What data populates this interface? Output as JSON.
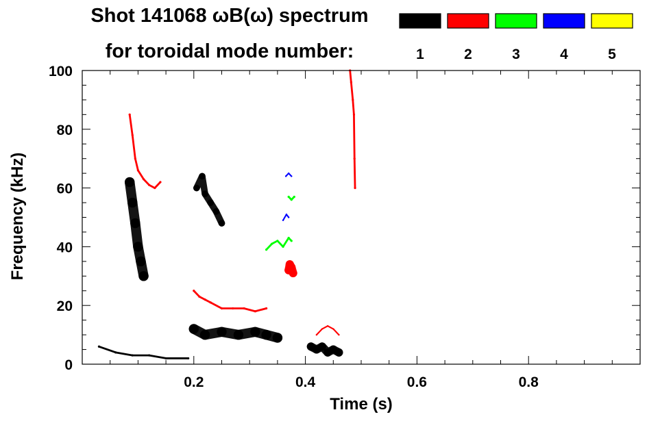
{
  "chart_data": {
    "type": "spectrogram",
    "title_line1": "Shot 141068 ωB(ω) spectrum",
    "title_line2": "for toroidal mode number:",
    "legend": [
      {
        "label": "1",
        "color": "#000000"
      },
      {
        "label": "2",
        "color": "#ff0000"
      },
      {
        "label": "3",
        "color": "#00ff00"
      },
      {
        "label": "4",
        "color": "#0000ff"
      },
      {
        "label": "5",
        "color": "#ffff00"
      }
    ],
    "xlabel": "Time (s)",
    "ylabel": "Frequency (kHz)",
    "xlim": [
      0.0,
      1.0
    ],
    "ylim": [
      0,
      100
    ],
    "x_ticks": [
      {
        "value": 0.2,
        "label": "0.2"
      },
      {
        "value": 0.4,
        "label": "0.4"
      },
      {
        "value": 0.6,
        "label": "0.6"
      },
      {
        "value": 0.8,
        "label": "0.8"
      }
    ],
    "y_ticks": [
      {
        "value": 0,
        "label": "0"
      },
      {
        "value": 20,
        "label": "20"
      },
      {
        "value": 40,
        "label": "40"
      },
      {
        "value": 60,
        "label": "60"
      },
      {
        "value": 80,
        "label": "80"
      },
      {
        "value": 100,
        "label": "100"
      }
    ],
    "x_minor_step": 0.05,
    "y_minor_step": 5,
    "mode_traces": [
      {
        "mode": "1",
        "color": "#000000",
        "kind": "blob",
        "name": "n1-early-broadband",
        "points": [
          [
            0.085,
            62
          ],
          [
            0.09,
            55
          ],
          [
            0.095,
            48
          ],
          [
            0.1,
            40
          ],
          [
            0.105,
            35
          ],
          [
            0.11,
            30
          ]
        ],
        "width": 6
      },
      {
        "mode": "1",
        "color": "#000000",
        "kind": "blob",
        "name": "n1-low-freq-band",
        "points": [
          [
            0.2,
            12
          ],
          [
            0.22,
            10
          ],
          [
            0.25,
            11
          ],
          [
            0.28,
            10
          ],
          [
            0.31,
            11
          ],
          [
            0.33,
            10
          ],
          [
            0.35,
            9
          ]
        ],
        "width": 6
      },
      {
        "mode": "1",
        "color": "#000000",
        "kind": "blob",
        "name": "n1-late-low-band",
        "points": [
          [
            0.41,
            6
          ],
          [
            0.42,
            5
          ],
          [
            0.43,
            6
          ],
          [
            0.44,
            4
          ],
          [
            0.45,
            5
          ],
          [
            0.46,
            4
          ]
        ],
        "width": 5
      },
      {
        "mode": "1",
        "color": "#000000",
        "kind": "blob",
        "name": "n1-mid-burst",
        "points": [
          [
            0.205,
            60
          ],
          [
            0.215,
            64
          ],
          [
            0.22,
            58
          ],
          [
            0.23,
            55
          ],
          [
            0.24,
            52
          ],
          [
            0.25,
            48
          ]
        ],
        "width": 4
      },
      {
        "mode": "1",
        "color": "#000000",
        "kind": "line",
        "name": "n1-startup-floor",
        "points": [
          [
            0.03,
            6
          ],
          [
            0.06,
            4
          ],
          [
            0.09,
            3
          ],
          [
            0.12,
            3
          ],
          [
            0.15,
            2
          ],
          [
            0.19,
            2
          ]
        ],
        "width": 2
      },
      {
        "mode": "2",
        "color": "#ff0000",
        "kind": "line",
        "name": "n2-early-chirp",
        "points": [
          [
            0.085,
            85
          ],
          [
            0.09,
            78
          ],
          [
            0.095,
            70
          ],
          [
            0.1,
            66
          ],
          [
            0.11,
            63
          ],
          [
            0.12,
            61
          ],
          [
            0.13,
            60
          ],
          [
            0.14,
            62
          ]
        ],
        "width": 2
      },
      {
        "mode": "2",
        "color": "#ff0000",
        "kind": "line",
        "name": "n2-20khz-band",
        "points": [
          [
            0.2,
            25
          ],
          [
            0.21,
            23
          ],
          [
            0.22,
            22
          ],
          [
            0.23,
            21
          ],
          [
            0.25,
            19
          ],
          [
            0.27,
            19
          ],
          [
            0.29,
            19
          ],
          [
            0.31,
            18
          ],
          [
            0.33,
            19
          ]
        ],
        "width": 2
      },
      {
        "mode": "2",
        "color": "#ff0000",
        "kind": "blob",
        "name": "n2-burst-33khz",
        "points": [
          [
            0.37,
            32
          ],
          [
            0.372,
            34
          ],
          [
            0.375,
            33
          ],
          [
            0.378,
            31
          ]
        ],
        "width": 5
      },
      {
        "mode": "2",
        "color": "#ff0000",
        "kind": "line",
        "name": "n2-late-chirp",
        "points": [
          [
            0.48,
            100
          ],
          [
            0.482,
            96
          ],
          [
            0.485,
            90
          ],
          [
            0.487,
            85
          ],
          [
            0.488,
            70
          ],
          [
            0.489,
            60
          ]
        ],
        "width": 2
      },
      {
        "mode": "2",
        "color": "#ff0000",
        "kind": "line",
        "name": "n2-low-late",
        "points": [
          [
            0.42,
            10
          ],
          [
            0.43,
            12
          ],
          [
            0.44,
            13
          ],
          [
            0.45,
            12
          ],
          [
            0.46,
            10
          ]
        ],
        "width": 1.5
      },
      {
        "mode": "3",
        "color": "#00ff00",
        "kind": "line",
        "name": "n3-chirp-40khz",
        "points": [
          [
            0.33,
            39
          ],
          [
            0.34,
            41
          ],
          [
            0.35,
            42
          ],
          [
            0.36,
            40
          ],
          [
            0.37,
            43
          ],
          [
            0.375,
            42
          ]
        ],
        "width": 2
      },
      {
        "mode": "3",
        "color": "#00ff00",
        "kind": "line",
        "name": "n3-chirp-57khz",
        "points": [
          [
            0.37,
            57
          ],
          [
            0.375,
            56
          ],
          [
            0.38,
            57
          ]
        ],
        "width": 2
      },
      {
        "mode": "4",
        "color": "#0000ff",
        "kind": "line",
        "name": "n4-chirp-65khz",
        "points": [
          [
            0.365,
            64
          ],
          [
            0.37,
            65
          ],
          [
            0.375,
            64
          ]
        ],
        "width": 1.5
      },
      {
        "mode": "4",
        "color": "#0000ff",
        "kind": "line",
        "name": "n4-chirp-50khz",
        "points": [
          [
            0.36,
            49
          ],
          [
            0.366,
            51
          ],
          [
            0.37,
            50
          ]
        ],
        "width": 1.5
      }
    ]
  }
}
